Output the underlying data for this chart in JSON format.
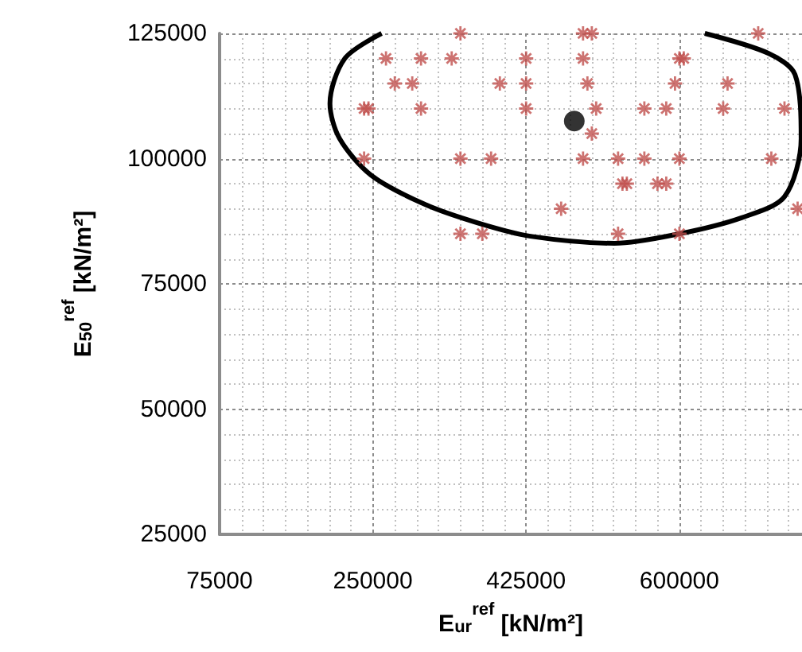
{
  "chart_data": {
    "type": "scatter",
    "xlabel": "E$_{ur}$$^{ref}$ [kN/m²]",
    "ylabel": "E$_{50}$$^{ref}$ [kN/m²]",
    "xlim": [
      75000,
      740000
    ],
    "xticks": [
      75000,
      250000,
      425000,
      600000
    ],
    "ylim": [
      25000,
      125000
    ],
    "yticks": [
      25000,
      50000,
      75000,
      100000,
      125000
    ],
    "grid": true,
    "series": [
      {
        "marker": "cross",
        "color": "#c0504d",
        "x": [
          350000,
          490000,
          500000,
          690000,
          265000,
          305000,
          340000,
          425000,
          490000,
          600000,
          605000,
          275000,
          295000,
          395000,
          425000,
          495000,
          595000,
          655000,
          240000,
          245000,
          305000,
          425000,
          505000,
          560000,
          585000,
          650000,
          720000,
          500000,
          240000,
          350000,
          385000,
          490000,
          530000,
          560000,
          600000,
          705000,
          535000,
          540000,
          575000,
          585000,
          465000,
          735000,
          350000,
          375000,
          530000,
          600000
        ],
        "values": [
          125000,
          125000,
          125000,
          125000,
          120000,
          120000,
          120000,
          120000,
          120000,
          120000,
          120000,
          115000,
          115000,
          115000,
          115000,
          115000,
          115000,
          115000,
          110000,
          110000,
          110000,
          110000,
          110000,
          110000,
          110000,
          110000,
          110000,
          105000,
          100000,
          100000,
          100000,
          100000,
          100000,
          100000,
          100000,
          100000,
          95000,
          95000,
          95000,
          95000,
          90000,
          90000,
          85000,
          85000,
          85000,
          85000
        ]
      },
      {
        "marker": "circle",
        "color": "#000000",
        "x": [
          480000
        ],
        "values": [
          107500
        ]
      },
      {
        "type": "line",
        "marker": "none",
        "color": "#000000",
        "x": [
          260000,
          218000,
          201000,
          212000,
          248000,
          309000,
          369000,
          430000,
          526000,
          600000,
          671000,
          720000,
          739000,
          732000,
          702000,
          629000
        ],
        "values": [
          125000,
          120000,
          111000,
          104000,
          96700,
          90900,
          87200,
          84500,
          83100,
          85000,
          88200,
          92400,
          104000,
          116800,
          121000,
          125000
        ]
      }
    ]
  }
}
